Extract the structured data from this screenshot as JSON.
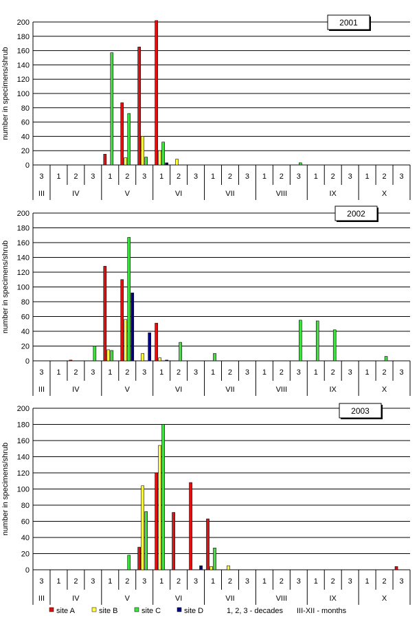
{
  "colors": {
    "site_a": "#e01010",
    "site_b": "#ffff40",
    "site_c": "#40e040",
    "site_d": "#000080"
  },
  "legend": {
    "items": [
      {
        "label": "site A",
        "color": "#e01010"
      },
      {
        "label": "site B",
        "color": "#ffff40"
      },
      {
        "label": "site C",
        "color": "#40e040"
      },
      {
        "label": "site D",
        "color": "#000080"
      }
    ],
    "note_decades": "1, 2, 3 - decades",
    "note_months": "III-XII - months"
  },
  "chart_data": [
    {
      "type": "bar",
      "title": "2001",
      "ylabel": "number in specimens/shrub",
      "ylim": [
        0,
        200
      ],
      "yticks": [
        0,
        20,
        40,
        60,
        80,
        100,
        120,
        140,
        160,
        180,
        200
      ],
      "decades": [
        "3",
        "1",
        "2",
        "3",
        "1",
        "2",
        "3",
        "1",
        "2",
        "3",
        "1",
        "2",
        "3",
        "1",
        "2",
        "3",
        "1",
        "2",
        "3",
        "1",
        "2",
        "3"
      ],
      "months": [
        "III",
        "IV",
        "V",
        "VI",
        "VII",
        "VIII",
        "IX",
        "X"
      ],
      "series": [
        {
          "name": "site A",
          "values": [
            0,
            0,
            0,
            0,
            15,
            87,
            165,
            202,
            0,
            0,
            0,
            0,
            0,
            0,
            0,
            0,
            0,
            0,
            0,
            0,
            0,
            0
          ]
        },
        {
          "name": "site B",
          "values": [
            0,
            0,
            0,
            0,
            0,
            10,
            40,
            20,
            8,
            0,
            0,
            0,
            0,
            0,
            0,
            0,
            0,
            0,
            0,
            0,
            0,
            0
          ]
        },
        {
          "name": "site C",
          "values": [
            0,
            0,
            0,
            0,
            157,
            72,
            11,
            32,
            0,
            0,
            0,
            0,
            0,
            0,
            0,
            3,
            0,
            0,
            0,
            0,
            0,
            0
          ]
        },
        {
          "name": "site D",
          "values": [
            0,
            0,
            0,
            0,
            0,
            0,
            0,
            3,
            0,
            0,
            0,
            0,
            0,
            0,
            0,
            0,
            0,
            0,
            0,
            0,
            0,
            0
          ]
        }
      ]
    },
    {
      "type": "bar",
      "title": "2002",
      "ylabel": "number in specimens/shrub",
      "ylim": [
        0,
        200
      ],
      "yticks": [
        0,
        20,
        40,
        60,
        80,
        100,
        120,
        140,
        160,
        180,
        200
      ],
      "decades": [
        "3",
        "1",
        "2",
        "3",
        "1",
        "2",
        "3",
        "1",
        "2",
        "3",
        "1",
        "2",
        "3",
        "1",
        "2",
        "3",
        "1",
        "2",
        "3",
        "1",
        "2",
        "3"
      ],
      "months": [
        "III",
        "IV",
        "V",
        "VI",
        "VII",
        "VIII",
        "IX",
        "X"
      ],
      "series": [
        {
          "name": "site A",
          "values": [
            0,
            0,
            1,
            0,
            128,
            110,
            0,
            51,
            0,
            0,
            0,
            0,
            0,
            0,
            0,
            0,
            0,
            0,
            0,
            0,
            0,
            0
          ]
        },
        {
          "name": "site B",
          "values": [
            0,
            0,
            0,
            0,
            15,
            56,
            10,
            4,
            0,
            0,
            0,
            0,
            0,
            0,
            0,
            0,
            0,
            0,
            0,
            0,
            0,
            0
          ]
        },
        {
          "name": "site C",
          "values": [
            0,
            0,
            0,
            20,
            14,
            167,
            0,
            0,
            25,
            0,
            10,
            0,
            0,
            0,
            0,
            55,
            54,
            42,
            0,
            0,
            6,
            0
          ]
        },
        {
          "name": "site D",
          "values": [
            0,
            0,
            0,
            0,
            0,
            92,
            38,
            1,
            0,
            0,
            0,
            0,
            0,
            0,
            0,
            0,
            0,
            0,
            0,
            0,
            0,
            0
          ]
        }
      ]
    },
    {
      "type": "bar",
      "title": "2003",
      "ylabel": "number in specimens/shrub",
      "ylim": [
        0,
        200
      ],
      "yticks": [
        0,
        20,
        40,
        60,
        80,
        100,
        120,
        140,
        160,
        180,
        200
      ],
      "decades": [
        "3",
        "1",
        "2",
        "3",
        "1",
        "2",
        "3",
        "1",
        "2",
        "3",
        "1",
        "2",
        "3",
        "1",
        "2",
        "3",
        "1",
        "2",
        "3",
        "1",
        "2",
        "3"
      ],
      "months": [
        "III",
        "IV",
        "V",
        "VI",
        "VII",
        "VIII",
        "IX",
        "X"
      ],
      "series": [
        {
          "name": "site A",
          "values": [
            0,
            0,
            0,
            0,
            0,
            0,
            28,
            120,
            71,
            108,
            63,
            0,
            0,
            0,
            0,
            0,
            0,
            0,
            0,
            0,
            0,
            4
          ]
        },
        {
          "name": "site B",
          "values": [
            0,
            0,
            0,
            0,
            0,
            0,
            104,
            154,
            0,
            0,
            4,
            5,
            0,
            0,
            0,
            0,
            0,
            0,
            0,
            0,
            0,
            0
          ]
        },
        {
          "name": "site C",
          "values": [
            0,
            0,
            0,
            0,
            0,
            18,
            72,
            180,
            0,
            0,
            27,
            0,
            0,
            0,
            0,
            0,
            0,
            0,
            0,
            0,
            0,
            0
          ]
        },
        {
          "name": "site D",
          "values": [
            0,
            0,
            0,
            0,
            0,
            0,
            0,
            0,
            0,
            5,
            0,
            0,
            0,
            0,
            0,
            0,
            0,
            0,
            0,
            0,
            0,
            0
          ]
        }
      ]
    }
  ]
}
